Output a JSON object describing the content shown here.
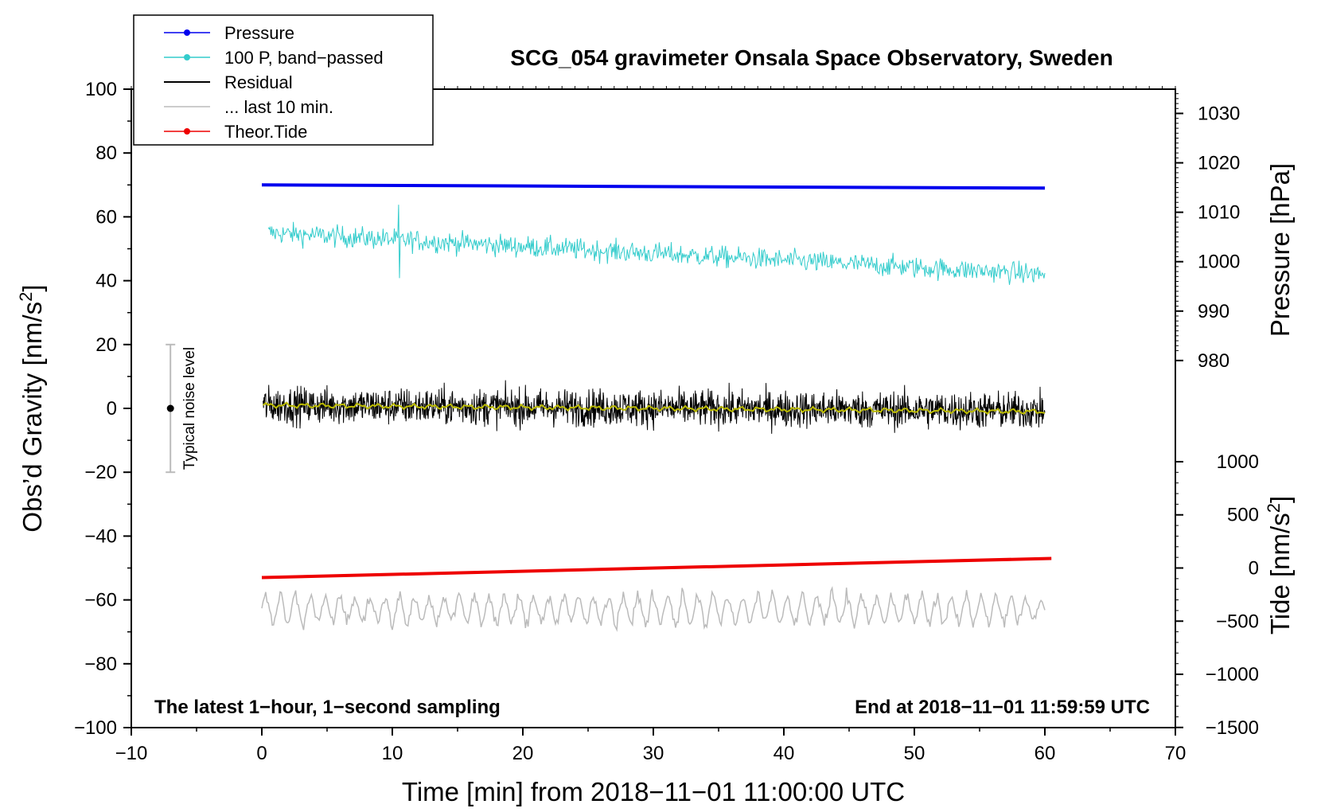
{
  "chart_data": {
    "type": "line",
    "title": "SCG_054 gravimeter Onsala Space Observatory, Sweden",
    "xlabel": "Time [min] from 2018−11−01 11:00:00 UTC",
    "ylabel_left": "Obs’d Gravity [nm/s",
    "ylabel_left_sup": "2",
    "ylabel_left_close": "]",
    "ylabel_right_pressure": "Pressure [hPa]",
    "ylabel_right_tide": "Tide [nm/s",
    "ylabel_right_tide_sup": "2",
    "ylabel_right_tide_close": "]",
    "xlim": [
      -10,
      70
    ],
    "ylim": [
      -100,
      100
    ],
    "x_ticks": [
      "−10",
      "0",
      "10",
      "20",
      "30",
      "40",
      "50",
      "60",
      "70"
    ],
    "x_tick_values": [
      -10,
      0,
      10,
      20,
      30,
      40,
      50,
      60,
      70
    ],
    "y_ticks": [
      "100",
      "80",
      "60",
      "40",
      "20",
      "0",
      "−20",
      "−40",
      "−60",
      "−80",
      "−100"
    ],
    "y_tick_values": [
      100,
      80,
      60,
      40,
      20,
      0,
      -20,
      -40,
      -60,
      -80,
      -100
    ],
    "pressure_axis": {
      "ticks": [
        "1030",
        "1020",
        "1010",
        "1000",
        "990",
        "980"
      ],
      "tick_values": [
        1030,
        1020,
        1010,
        1000,
        990,
        980
      ],
      "gravity_equivalent_at_1030": 92.4,
      "gravity_per_hpa": 1.548
    },
    "tide_axis": {
      "ticks": [
        "1000",
        "500",
        "0",
        "−500",
        "−1000",
        "−1500"
      ],
      "tick_values": [
        1000,
        500,
        0,
        -500,
        -1000,
        -1500
      ],
      "gravity_equivalent_at_0": -50,
      "gravity_per_nm": 0.0333
    },
    "series": [
      {
        "name": "Pressure",
        "color": "#0000ee",
        "x": [
          0,
          60
        ],
        "y": [
          70.0,
          69.0
        ],
        "style": "thick"
      },
      {
        "name": "100 P, band−passed",
        "color": "#33cccc",
        "x_start": 0.5,
        "x_end": 60,
        "y_start": 55,
        "y_end": 42,
        "amplitude": 4,
        "style": "noisy"
      },
      {
        "name": "Residual",
        "color": "#000000",
        "x_start": 0.1,
        "x_end": 60,
        "y_center": 1,
        "amplitude": 5.5,
        "style": "noisy"
      },
      {
        "name": "Residual (smoothed)",
        "color": "#bbbb00",
        "x_start": 0.1,
        "x_end": 60,
        "y_start": 1,
        "y_end": -1,
        "style": "smooth"
      },
      {
        "name": "... last 10 min.",
        "color": "#bbbbbb",
        "x_start": 0,
        "x_end": 60,
        "y_center": -63,
        "amplitude": 5,
        "style": "wiggle"
      },
      {
        "name": "Theor.Tide",
        "color": "#ee0000",
        "x": [
          0,
          60.5
        ],
        "y": [
          -53.0,
          -47.0
        ],
        "style": "thick"
      }
    ],
    "legend": [
      {
        "label": "Pressure",
        "color": "#0000ee",
        "marker": true
      },
      {
        "label": "100 P, band−passed",
        "color": "#33cccc",
        "marker": true
      },
      {
        "label": "Residual",
        "color": "#000000",
        "marker": false
      },
      {
        "label": "... last 10 min.",
        "color": "#bbbbbb",
        "marker": false
      },
      {
        "label": "Theor.Tide",
        "color": "#ee0000",
        "marker": true
      }
    ],
    "noise_bar": {
      "label": "Typical noise level",
      "x": -7,
      "center": 0,
      "low": -20,
      "high": 20
    },
    "annotations": {
      "bottom_left": "The latest 1−hour, 1−second sampling",
      "bottom_right": "End at 2018−11−01 11:59:59 UTC"
    }
  }
}
